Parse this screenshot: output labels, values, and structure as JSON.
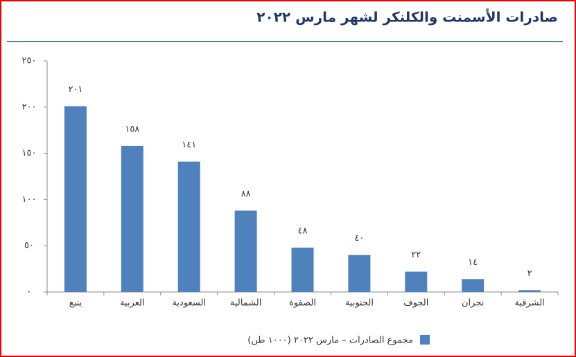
{
  "chart_data": {
    "type": "bar",
    "title": "صادرات الأسمنت والكلنكر لشهر مارس ٢٠٢٢",
    "categories": [
      "ينبع",
      "العربية",
      "السعودية",
      "الشمالية",
      "الصفوة",
      "الجنوبية",
      "الجوف",
      "نجران",
      "الشرقية"
    ],
    "series": [
      {
        "name": "مجموع الصادرات – مارس ٢٠٢٢ (١٠٠٠ طن)",
        "color": "#4f81bd",
        "values": [
          201,
          158,
          141,
          88,
          48,
          40,
          22,
          14,
          2
        ],
        "value_labels": [
          "٢٠١",
          "١٥٨",
          "١٤١",
          "٨٨",
          "٤٨",
          "٤٠",
          "٢٢",
          "١٤",
          "٢"
        ]
      }
    ],
    "ylim": [
      0,
      250
    ],
    "yticks": [
      {
        "value": 0,
        "label": "٠"
      },
      {
        "value": 50,
        "label": "٥٠"
      },
      {
        "value": 100,
        "label": "١٠٠"
      },
      {
        "value": 150,
        "label": "١٥٠"
      },
      {
        "value": 200,
        "label": "٢٠٠"
      },
      {
        "value": 250,
        "label": "٢٥٠"
      }
    ],
    "legend": "bottom"
  }
}
